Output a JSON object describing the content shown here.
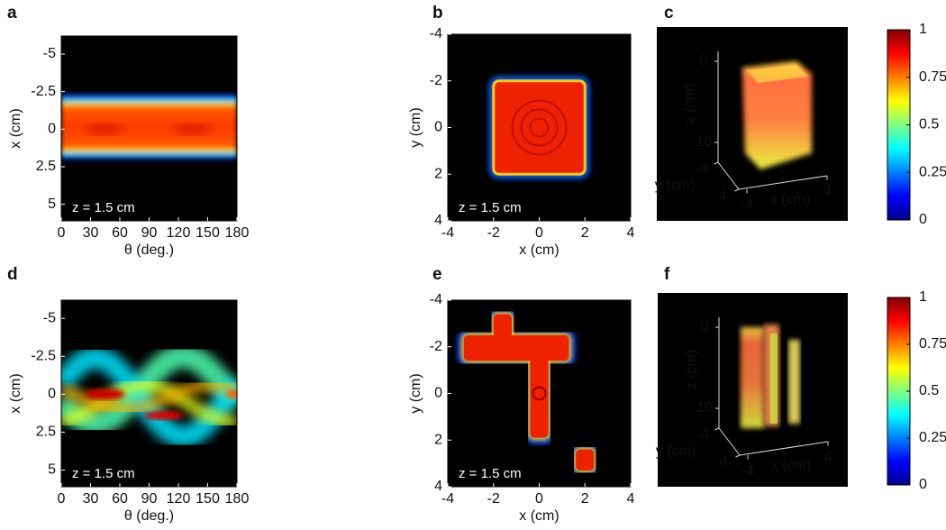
{
  "chart_data": [
    {
      "type": "heatmap",
      "label": "a",
      "xlabel": "θ (deg.)",
      "ylabel": "x (cm)",
      "xlim": [
        0,
        180
      ],
      "ylim": [
        -6.2,
        6.1
      ],
      "y_inverted": true,
      "xticks": [
        0,
        30,
        60,
        90,
        120,
        150,
        180
      ],
      "yticks": [
        -5,
        -2.5,
        0,
        2.5,
        5
      ],
      "annotation": "z = 1.5 cm"
    },
    {
      "type": "heatmap",
      "label": "b",
      "xlabel": "x (cm)",
      "ylabel": "y (cm)",
      "xlim": [
        -4,
        4
      ],
      "ylim": [
        -4,
        4
      ],
      "y_inverted": true,
      "xticks": [
        -4,
        -2,
        0,
        2,
        4
      ],
      "yticks": [
        -4,
        -2,
        0,
        2,
        4
      ],
      "annotation": "z = 1.5 cm"
    },
    {
      "type": "volume",
      "label": "c",
      "xlabel": "x (cm)",
      "ylabel": "y (cm)",
      "zlabel": "z (cm)",
      "xticks": [
        -4,
        4
      ],
      "yticks": [
        -4,
        4
      ],
      "zticks": [
        0,
        10
      ],
      "colorbar": {
        "lim": [
          0,
          1
        ],
        "ticks": [
          0,
          0.25,
          0.5,
          0.75,
          1
        ]
      }
    },
    {
      "type": "heatmap",
      "label": "d",
      "xlabel": "θ (deg.)",
      "ylabel": "x (cm)",
      "xlim": [
        0,
        180
      ],
      "ylim": [
        -6.2,
        6.1
      ],
      "y_inverted": true,
      "xticks": [
        0,
        30,
        60,
        90,
        120,
        150,
        180
      ],
      "yticks": [
        -5,
        -2.5,
        0,
        2.5,
        5
      ],
      "annotation": "z = 1.5 cm"
    },
    {
      "type": "heatmap",
      "label": "e",
      "xlabel": "x (cm)",
      "ylabel": "y (cm)",
      "xlim": [
        -4,
        4
      ],
      "ylim": [
        -4,
        4
      ],
      "y_inverted": true,
      "xticks": [
        -4,
        -2,
        0,
        2,
        4
      ],
      "yticks": [
        -4,
        -2,
        0,
        2,
        4
      ],
      "annotation": "z = 1.5 cm"
    },
    {
      "type": "volume",
      "label": "f",
      "xlabel": "x (cm)",
      "ylabel": "y (cm)",
      "zlabel": "z (cm)",
      "xticks": [
        -4,
        4
      ],
      "yticks": [
        -4,
        4
      ],
      "zticks": [
        0,
        10
      ],
      "colorbar": {
        "lim": [
          0,
          1
        ],
        "ticks": [
          0,
          0.25,
          0.5,
          0.75,
          1
        ]
      }
    }
  ]
}
